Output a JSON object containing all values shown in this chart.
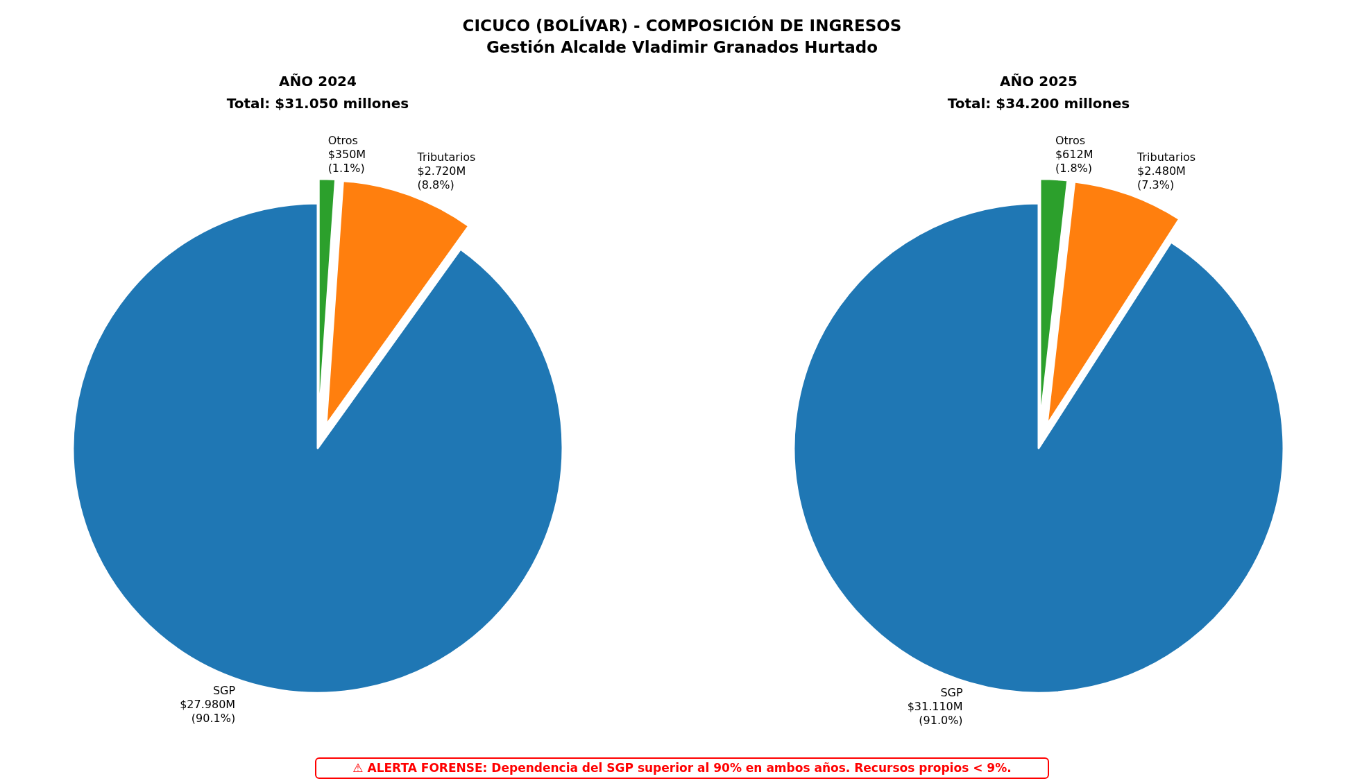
{
  "chart_data": [
    {
      "type": "pie",
      "title": "AÑO 2024",
      "subtitle": "Total: $31.050 millones",
      "categories": [
        "SGP",
        "Tributarios",
        "Otros"
      ],
      "values": [
        90.1,
        8.8,
        1.1
      ],
      "colors": [
        "#1f77b4",
        "#ff7f0e",
        "#2ca02c"
      ],
      "value_labels": [
        "$27.980M\n(90.1%)",
        "$2.720M\n(8.8%)",
        "$350M\n(1.1%)"
      ],
      "annotations": [
        "CICUCO (BOLÍVAR) - COMPOSICIÓN DE INGRESOS",
        "Gestión Alcalde Vladimir Granados Hurtado",
        "⚠ ALERTA FORENSE: Dependencia del SGP superior al 90% en ambos años. Recursos propios < 9%."
      ]
    },
    {
      "type": "pie",
      "title": "AÑO 2025",
      "subtitle": "Total: $34.200 millones",
      "categories": [
        "SGP",
        "Tributarios",
        "Otros"
      ],
      "values": [
        91.0,
        7.3,
        1.8
      ],
      "colors": [
        "#1f77b4",
        "#ff7f0e",
        "#2ca02c"
      ],
      "value_labels": [
        "$31.110M\n(91.0%)",
        "$2.480M\n(7.3%)",
        "$612M\n(1.8%)"
      ]
    }
  ]
}
